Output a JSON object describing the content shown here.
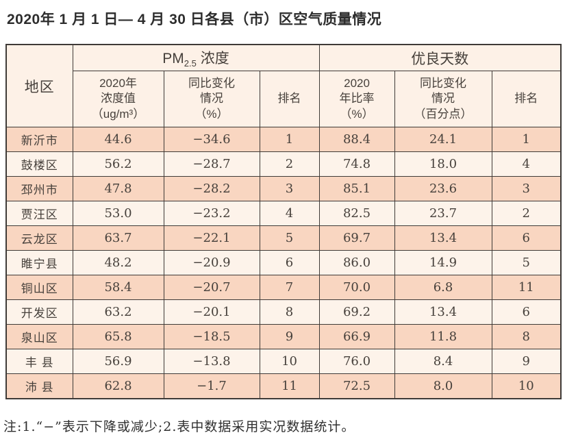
{
  "page": {
    "title": "2020年 1 月 1 日— 4 月 30 日各县（市）区空气质量情况",
    "footnote": "注:1.“−”表示下降或减少;2.表中数据采用实况数据统计。"
  },
  "colors": {
    "row_odd": "#f9d6c1",
    "row_even": "#fdf3ea",
    "header_bg": "#fdf1e7",
    "border": "#3e3a37",
    "text": "#46403b"
  },
  "table": {
    "header": {
      "region": "地区",
      "pm_group": {
        "prefix": "PM",
        "sub": "2.5",
        "suffix": " 浓度"
      },
      "good_group": "优良天数",
      "pm_cols": [
        "2020年\n浓度值\n（ug/m³）",
        "同比变化\n情况\n（%）",
        "排名"
      ],
      "good_cols": [
        "2020\n年比率\n（%）",
        "同比变化\n情况\n（百分点）",
        "排名"
      ]
    },
    "rows": [
      {
        "region": "新沂市",
        "values": [
          "44.6",
          "−34.6",
          "1",
          "88.4",
          "24.1",
          "1"
        ]
      },
      {
        "region": "鼓楼区",
        "values": [
          "56.2",
          "−28.7",
          "2",
          "74.8",
          "18.0",
          "4"
        ]
      },
      {
        "region": "邳州市",
        "values": [
          "47.8",
          "−28.2",
          "3",
          "85.1",
          "23.6",
          "3"
        ]
      },
      {
        "region": "贾汪区",
        "values": [
          "53.0",
          "−23.2",
          "4",
          "82.5",
          "23.7",
          "2"
        ]
      },
      {
        "region": "云龙区",
        "values": [
          "63.7",
          "−22.1",
          "5",
          "69.7",
          "13.4",
          "6"
        ]
      },
      {
        "region": "睢宁县",
        "values": [
          "48.2",
          "−20.9",
          "6",
          "86.0",
          "14.9",
          "5"
        ]
      },
      {
        "region": "铜山区",
        "values": [
          "58.4",
          "−20.7",
          "7",
          "70.0",
          "6.8",
          "11"
        ]
      },
      {
        "region": "开发区",
        "values": [
          "63.2",
          "−20.1",
          "8",
          "69.2",
          "13.4",
          "6"
        ]
      },
      {
        "region": "泉山区",
        "values": [
          "65.8",
          "−18.5",
          "9",
          "66.9",
          "11.8",
          "8"
        ]
      },
      {
        "region": "丰 县",
        "values": [
          "56.9",
          "−13.8",
          "10",
          "76.0",
          "8.4",
          "9"
        ]
      },
      {
        "region": "沛 县",
        "values": [
          "62.8",
          "−1.7",
          "11",
          "72.5",
          "8.0",
          "10"
        ]
      }
    ]
  }
}
